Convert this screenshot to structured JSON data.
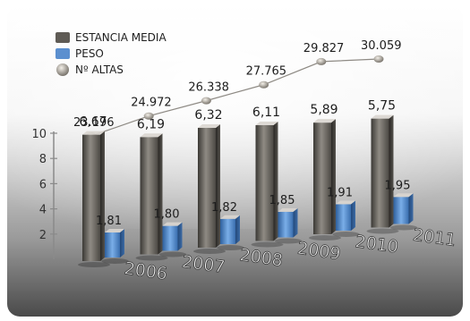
{
  "chart_data": {
    "type": "bar",
    "categories": [
      "2006",
      "2007",
      "2008",
      "2009",
      "2010",
      "2011"
    ],
    "series": [
      {
        "name": "ESTANCIA MEDIA",
        "values": [
          "6,67",
          "6,19",
          "6,32",
          "6,11",
          "5,89",
          "5,75"
        ],
        "numeric": [
          6.67,
          6.19,
          6.32,
          6.11,
          5.89,
          5.75
        ],
        "color": "#5b5853"
      },
      {
        "name": "PESO",
        "values": [
          "1,81",
          "1,80",
          "1,82",
          "1,85",
          "1,91",
          "1,95"
        ],
        "numeric": [
          1.81,
          1.8,
          1.82,
          1.85,
          1.91,
          1.95
        ],
        "color": "#4f86c6"
      },
      {
        "name": "Nº ALTAS",
        "values": [
          "23.196",
          "24.972",
          "26.338",
          "27.765",
          "29.827",
          "30.059"
        ],
        "numeric": [
          23196,
          24972,
          26338,
          27765,
          29827,
          30059
        ],
        "color": "#b8b2aa"
      }
    ],
    "yticks": [
      "2",
      "4",
      "6",
      "8",
      "10"
    ],
    "ylim": [
      0,
      10
    ],
    "legend_position": "top-left",
    "grid": false
  }
}
